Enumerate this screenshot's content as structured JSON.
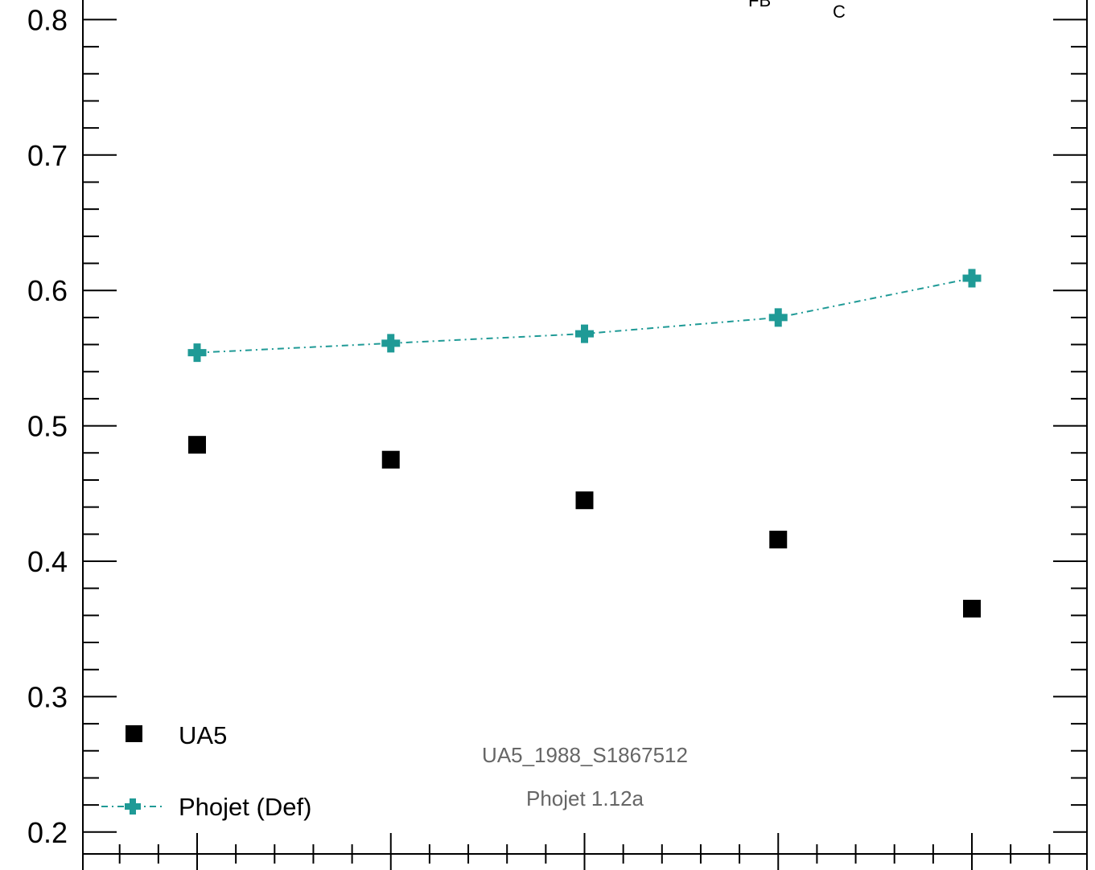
{
  "chart_data": {
    "type": "scatter",
    "title": {
      "main": "",
      "sub1": "FB",
      "sub2": "C"
    },
    "xlabel": "",
    "ylabel": "",
    "ylim": [
      0.18,
      0.815
    ],
    "x_index": [
      0,
      1,
      2,
      3,
      4
    ],
    "y_ticks": [
      {
        "value": 0.2,
        "label": "0.2"
      },
      {
        "value": 0.3,
        "label": "0.3"
      },
      {
        "value": 0.4,
        "label": "0.4"
      },
      {
        "value": 0.5,
        "label": "0.5"
      },
      {
        "value": 0.6,
        "label": "0.6"
      },
      {
        "value": 0.7,
        "label": "0.7"
      },
      {
        "value": 0.8,
        "label": "0.8"
      }
    ],
    "series": [
      {
        "name": "UA5",
        "marker": "square",
        "color": "#000000",
        "values": [
          0.486,
          0.475,
          0.445,
          0.416,
          0.365
        ]
      },
      {
        "name": "Phojet (Def)",
        "marker": "cross",
        "line": "dash-dot",
        "color": "#1f9a96",
        "values": [
          0.554,
          0.561,
          0.568,
          0.58,
          0.609
        ]
      }
    ],
    "legend_position": "bottom-left",
    "annotations": [
      "UA5_1988_S1867512",
      "Phojet 1.12a"
    ],
    "grid": false
  }
}
